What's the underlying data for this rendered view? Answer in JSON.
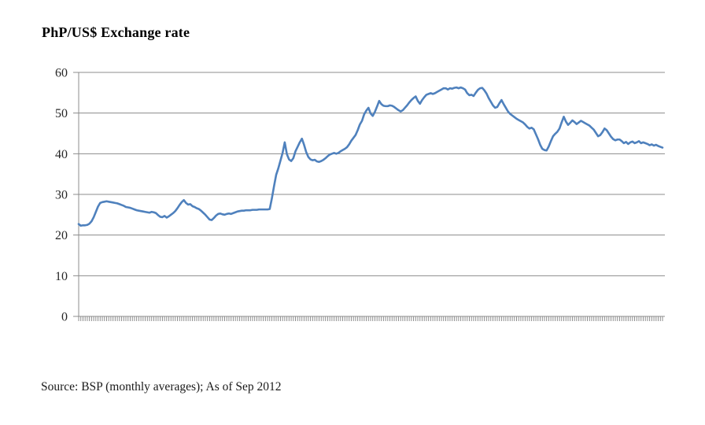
{
  "page": {
    "background": "#ffffff"
  },
  "header": {
    "title": "PhP/US$ Exchange rate"
  },
  "footer": {
    "source_note": "Source: BSP (monthly averages); As of Sep 2012"
  },
  "chart_data": {
    "type": "line",
    "title": "PhP/US$ Exchange rate",
    "xlabel": "",
    "ylabel": "",
    "ylim": [
      0,
      60
    ],
    "y_ticks": [
      0,
      10,
      20,
      30,
      40,
      50,
      60
    ],
    "grid": "horizontal gridlines on",
    "legend_position": "none",
    "frequency": "monthly",
    "x_start": "1990-01",
    "x_end": "2012-09",
    "x_axis_style": "dense unlabeled monthly tick marks",
    "colors": {
      "line": "#4F81BD",
      "gridline": "#8C8C8C",
      "axis": "#8C8C8C",
      "tick_text": "#262626"
    },
    "series": [
      {
        "name": "PhP per US$ (monthly average)",
        "color": "#4F81BD",
        "values": [
          22.7,
          22.3,
          22.4,
          22.4,
          22.5,
          22.8,
          23.4,
          24.4,
          25.7,
          27.0,
          27.9,
          28.1,
          28.2,
          28.3,
          28.2,
          28.1,
          28.0,
          27.9,
          27.8,
          27.6,
          27.4,
          27.2,
          26.9,
          26.8,
          26.7,
          26.5,
          26.3,
          26.1,
          26.0,
          25.9,
          25.8,
          25.7,
          25.6,
          25.5,
          25.7,
          25.6,
          25.4,
          24.9,
          24.5,
          24.4,
          24.7,
          24.3,
          24.6,
          25.0,
          25.4,
          25.9,
          26.6,
          27.4,
          28.1,
          28.6,
          27.9,
          27.5,
          27.6,
          27.1,
          26.9,
          26.6,
          26.4,
          26.0,
          25.5,
          25.0,
          24.4,
          23.8,
          23.7,
          24.2,
          24.8,
          25.2,
          25.3,
          25.1,
          25.0,
          25.2,
          25.3,
          25.2,
          25.4,
          25.6,
          25.8,
          25.9,
          26.0,
          26.0,
          26.1,
          26.1,
          26.1,
          26.2,
          26.2,
          26.2,
          26.3,
          26.3,
          26.3,
          26.3,
          26.3,
          26.4,
          29.0,
          32.0,
          34.8,
          36.4,
          38.3,
          40.2,
          42.8,
          39.9,
          38.6,
          38.2,
          38.9,
          40.6,
          41.7,
          42.8,
          43.7,
          42.2,
          40.4,
          39.2,
          38.6,
          38.4,
          38.5,
          38.1,
          38.0,
          38.2,
          38.5,
          38.9,
          39.4,
          39.8,
          40.0,
          40.2,
          40.0,
          40.2,
          40.6,
          40.9,
          41.2,
          41.6,
          42.3,
          43.2,
          43.9,
          44.6,
          45.8,
          47.2,
          48.1,
          49.7,
          50.6,
          51.3,
          49.9,
          49.3,
          50.3,
          51.6,
          53.0,
          52.2,
          51.8,
          51.7,
          51.7,
          51.9,
          51.8,
          51.5,
          51.1,
          50.7,
          50.4,
          50.7,
          51.3,
          51.9,
          52.6,
          53.2,
          53.7,
          54.1,
          53.0,
          52.3,
          53.2,
          53.9,
          54.5,
          54.7,
          54.9,
          54.7,
          54.9,
          55.2,
          55.5,
          55.8,
          56.1,
          56.1,
          55.8,
          56.1,
          56.0,
          56.2,
          56.3,
          56.1,
          56.3,
          56.1,
          55.8,
          54.9,
          54.4,
          54.5,
          54.2,
          55.0,
          55.7,
          56.1,
          56.2,
          55.6,
          54.8,
          53.7,
          52.8,
          51.9,
          51.3,
          51.5,
          52.4,
          53.2,
          52.2,
          51.3,
          50.4,
          49.8,
          49.4,
          49.0,
          48.6,
          48.3,
          48.0,
          47.7,
          47.2,
          46.6,
          46.2,
          46.4,
          46.0,
          44.8,
          43.6,
          42.2,
          41.2,
          40.9,
          40.8,
          41.8,
          43.1,
          44.3,
          44.9,
          45.4,
          46.2,
          47.7,
          49.1,
          47.9,
          47.1,
          47.6,
          48.2,
          47.8,
          47.3,
          47.7,
          48.1,
          47.8,
          47.5,
          47.2,
          46.9,
          46.4,
          45.9,
          45.1,
          44.3,
          44.6,
          45.3,
          46.2,
          45.8,
          45.0,
          44.2,
          43.6,
          43.3,
          43.5,
          43.5,
          43.1,
          42.6,
          42.9,
          42.4,
          42.8,
          43.0,
          42.6,
          42.8,
          43.1,
          42.6,
          42.8,
          42.6,
          42.4,
          42.1,
          42.3,
          42.0,
          42.2,
          41.9,
          41.7,
          41.5
        ]
      }
    ]
  }
}
